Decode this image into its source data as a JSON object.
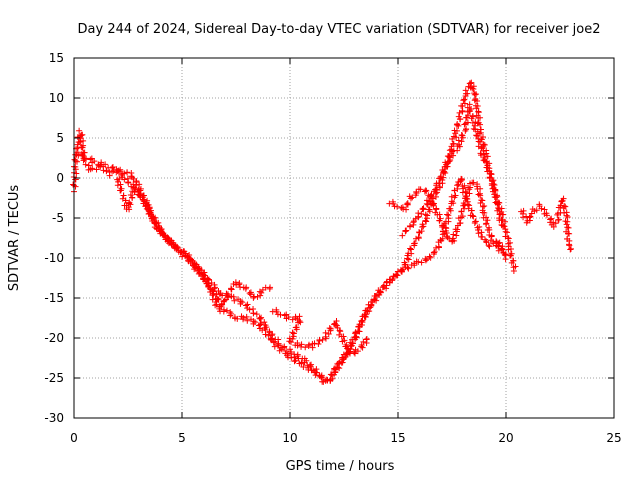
{
  "chart_data": {
    "type": "scatter",
    "title": "Day 244 of 2024, Sidereal Day-to-day VTEC variation (SDTVAR) for receiver joe2",
    "xlabel": "GPS time / hours",
    "ylabel": "SDTVAR / TECUs",
    "xlim": [
      0,
      25
    ],
    "ylim": [
      -30,
      15
    ],
    "xticks": [
      0,
      5,
      10,
      15,
      20,
      25
    ],
    "yticks": [
      -30,
      -25,
      -20,
      -15,
      -10,
      -5,
      0,
      5,
      10,
      15
    ],
    "grid": true,
    "marker": "+",
    "series_color": "#ff0000",
    "series": [
      {
        "name": "track-a",
        "points": [
          [
            0,
            -1.5
          ],
          [
            0.1,
            3
          ],
          [
            0.3,
            5.8
          ],
          [
            0.5,
            2
          ],
          [
            0.8,
            1
          ],
          [
            1.2,
            1.5
          ],
          [
            1.6,
            0.5
          ],
          [
            2,
            1
          ],
          [
            2.6,
            0.5
          ],
          [
            3,
            -1
          ],
          [
            3.4,
            -3.5
          ],
          [
            3.8,
            -6
          ],
          [
            4.3,
            -7.5
          ],
          [
            4.9,
            -9
          ],
          [
            5.5,
            -10.5
          ],
          [
            6,
            -12
          ],
          [
            6.4,
            -14.5
          ],
          [
            6.7,
            -16.5
          ],
          [
            7,
            -15
          ],
          [
            7.5,
            -13
          ],
          [
            8,
            -14
          ],
          [
            8.4,
            -15
          ],
          [
            8.8,
            -14
          ],
          [
            9.1,
            -13.5
          ]
        ]
      },
      {
        "name": "track-b",
        "points": [
          [
            0.2,
            3
          ],
          [
            0.6,
            2.5
          ],
          [
            1,
            2
          ],
          [
            1.5,
            1.5
          ],
          [
            2,
            1
          ],
          [
            2.5,
            -0.5
          ],
          [
            3,
            -2
          ],
          [
            3.5,
            -4
          ],
          [
            4,
            -6.5
          ],
          [
            4.6,
            -8.5
          ],
          [
            5.2,
            -9.5
          ],
          [
            5.8,
            -11.5
          ],
          [
            6.3,
            -13
          ],
          [
            6.8,
            -14.5
          ],
          [
            7.4,
            -15
          ],
          [
            8,
            -16
          ],
          [
            8.6,
            -17.5
          ],
          [
            9.1,
            -19.5
          ],
          [
            9.6,
            -21
          ],
          [
            10.2,
            -22
          ],
          [
            10.8,
            -23
          ],
          [
            11.3,
            -24.5
          ],
          [
            11.6,
            -25.5
          ],
          [
            11.9,
            -25
          ],
          [
            12.2,
            -23.5
          ],
          [
            12.6,
            -22
          ],
          [
            13,
            -20
          ],
          [
            13.4,
            -17.5
          ],
          [
            13.8,
            -15.5
          ],
          [
            14.2,
            -14
          ],
          [
            14.7,
            -12.5
          ],
          [
            15.2,
            -11.5
          ],
          [
            15.6,
            -9
          ],
          [
            16,
            -7
          ],
          [
            16.3,
            -5
          ],
          [
            16.6,
            -3
          ],
          [
            17,
            -0.5
          ],
          [
            17.3,
            2
          ],
          [
            17.6,
            5
          ],
          [
            17.9,
            8
          ],
          [
            18.2,
            11
          ],
          [
            18.4,
            12
          ],
          [
            18.6,
            10
          ],
          [
            18.8,
            6
          ],
          [
            19.1,
            2.5
          ],
          [
            19.4,
            -1
          ],
          [
            19.8,
            -4.5
          ],
          [
            20.1,
            -8
          ],
          [
            20.4,
            -11.5
          ]
        ]
      },
      {
        "name": "track-c",
        "points": [
          [
            2,
            0
          ],
          [
            2.3,
            -2.5
          ],
          [
            2.5,
            -4
          ],
          [
            2.8,
            -1
          ],
          [
            3.2,
            -2.5
          ],
          [
            3.6,
            -5
          ],
          [
            4.1,
            -7
          ],
          [
            4.6,
            -8.5
          ],
          [
            5.2,
            -10
          ],
          [
            5.7,
            -11.5
          ],
          [
            6.1,
            -13
          ],
          [
            6.5,
            -14.5
          ],
          [
            7,
            -16.5
          ],
          [
            7.5,
            -17.5
          ],
          [
            8,
            -17.5
          ],
          [
            8.6,
            -18.5
          ],
          [
            9.2,
            -20.5
          ],
          [
            9.8,
            -22
          ],
          [
            10.4,
            -23
          ],
          [
            11,
            -24
          ],
          [
            11.5,
            -25
          ],
          [
            11.8,
            -25.5
          ],
          [
            12.1,
            -24
          ],
          [
            12.5,
            -22.5
          ],
          [
            12.9,
            -20.5
          ],
          [
            13.3,
            -18
          ],
          [
            13.7,
            -16
          ],
          [
            14.1,
            -14.5
          ],
          [
            14.6,
            -13
          ],
          [
            15,
            -12
          ],
          [
            15.5,
            -11
          ],
          [
            16,
            -10.5
          ],
          [
            16.5,
            -10
          ],
          [
            17,
            -8
          ],
          [
            17.3,
            -5
          ],
          [
            17.6,
            -2
          ],
          [
            17.9,
            0
          ],
          [
            18.2,
            -3
          ],
          [
            18.5,
            -5
          ],
          [
            18.9,
            -7.5
          ],
          [
            19.3,
            -8.5
          ],
          [
            19.7,
            -8
          ],
          [
            20,
            -10
          ]
        ]
      },
      {
        "name": "track-d",
        "points": [
          [
            9.2,
            -16.5
          ],
          [
            9.6,
            -17
          ],
          [
            10,
            -17.5
          ],
          [
            10.5,
            -17.5
          ],
          [
            10,
            -20.5
          ],
          [
            10.5,
            -21
          ],
          [
            11,
            -21
          ],
          [
            11.6,
            -20
          ],
          [
            12.1,
            -18
          ],
          [
            12.5,
            -20.5
          ],
          [
            12.8,
            -22
          ],
          [
            13.2,
            -21.5
          ],
          [
            13.6,
            -20
          ]
        ]
      },
      {
        "name": "track-e",
        "points": [
          [
            14.6,
            -3
          ],
          [
            15,
            -3.5
          ],
          [
            15.3,
            -4
          ],
          [
            15.6,
            -2.5
          ],
          [
            16,
            -1.5
          ],
          [
            16.3,
            -1.5
          ],
          [
            16.6,
            -3
          ],
          [
            16.9,
            -5
          ],
          [
            17.2,
            -7
          ],
          [
            17.5,
            -8
          ],
          [
            17.8,
            -6
          ],
          [
            18.1,
            -3
          ],
          [
            18.4,
            -0.5
          ],
          [
            18.7,
            -1
          ],
          [
            19,
            -4.5
          ],
          [
            19.3,
            -7.5
          ],
          [
            19.6,
            -8.5
          ],
          [
            19.9,
            -9.5
          ]
        ]
      },
      {
        "name": "track-f",
        "points": [
          [
            15.2,
            -7
          ],
          [
            15.6,
            -6
          ],
          [
            16,
            -4.5
          ],
          [
            16.4,
            -3
          ],
          [
            16.8,
            -1
          ],
          [
            17.2,
            1.5
          ],
          [
            17.5,
            3
          ],
          [
            17.8,
            4
          ],
          [
            18.1,
            6
          ],
          [
            18.3,
            9
          ],
          [
            18.6,
            6
          ],
          [
            18.9,
            3
          ],
          [
            19.2,
            1
          ],
          [
            19.5,
            -2
          ],
          [
            19.8,
            -6
          ]
        ]
      },
      {
        "name": "track-g",
        "points": [
          [
            20.7,
            -4
          ],
          [
            21,
            -5.5
          ],
          [
            21.3,
            -4
          ],
          [
            21.6,
            -3.5
          ],
          [
            21.9,
            -4.5
          ],
          [
            22.2,
            -6
          ],
          [
            22.4,
            -5
          ],
          [
            22.6,
            -2.5
          ],
          [
            22.8,
            -5
          ],
          [
            22.9,
            -8.5
          ],
          [
            23,
            -9
          ]
        ]
      }
    ]
  }
}
